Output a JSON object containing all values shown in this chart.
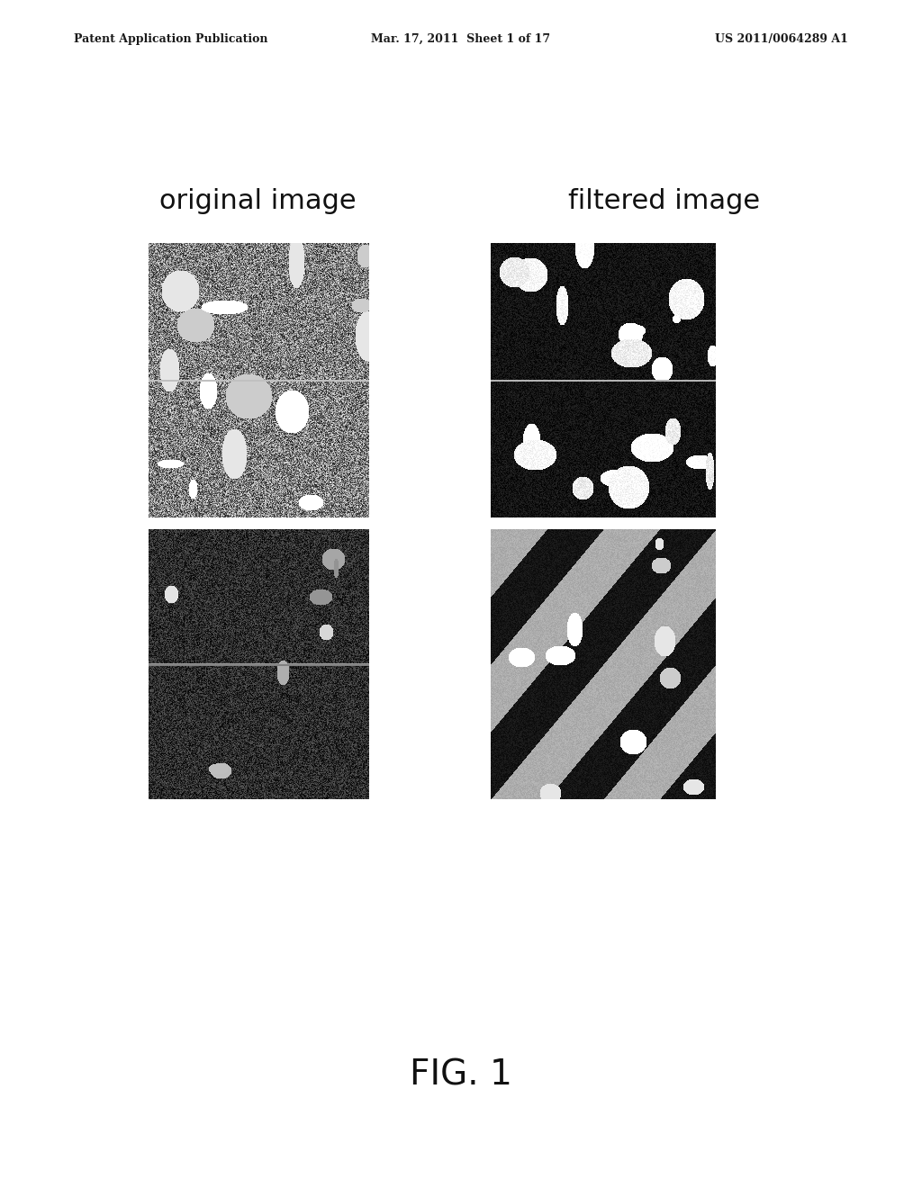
{
  "title_left": "Patent Application Publication",
  "title_mid": "Mar. 17, 2011  Sheet 1 of 17",
  "title_right": "US 2011/0064289 A1",
  "label_orig": "original image",
  "label_filt": "filtered image",
  "fig_label": "FIG. 1",
  "bg_color": "#ffffff",
  "header_fontsize": 9,
  "label_fontsize": 22,
  "fig_label_fontsize": 28
}
